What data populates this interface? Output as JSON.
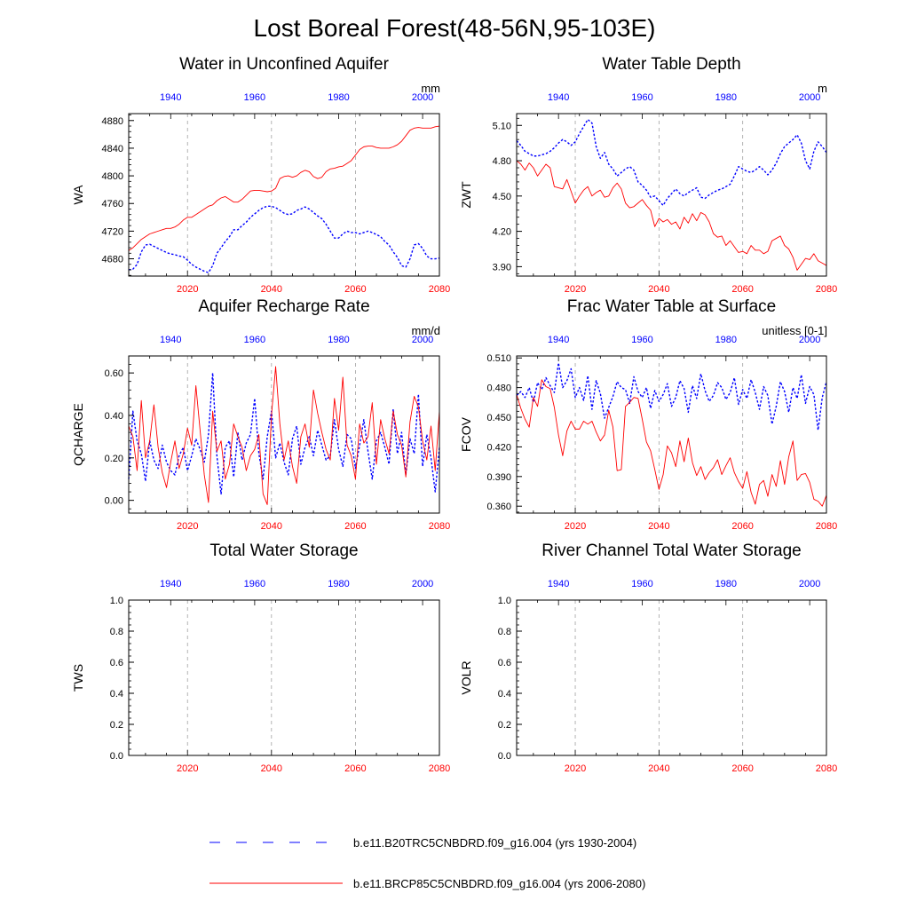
{
  "figure_title": "Lost Boreal Forest(48-56N,95-103E)",
  "colors": {
    "historical": "#0000ff",
    "future": "#ff0000",
    "grid": "#a0a0a0",
    "axis": "#000000"
  },
  "legend": {
    "historical": "b.e11.B20TRC5CNBDRD.f09_g16.004 (yrs 1930-2004)",
    "future": "b.e11.BRCP85C5CNBDRD.f09_g16.004 (yrs 2006-2080)"
  },
  "chart_data": [
    {
      "type": "line",
      "title": "Water in Unconfined Aquifer",
      "ylabel": "WA",
      "units": "mm",
      "ylim": [
        4655,
        4890
      ],
      "yticks": [
        4680,
        4720,
        4760,
        4800,
        4840,
        4880
      ],
      "yticklabels": [
        "4680",
        "4720",
        "4760",
        "4800",
        "4840",
        "4880"
      ],
      "x_bottom": {
        "range": [
          2006,
          2080
        ],
        "ticks": [
          2020,
          2040,
          2060,
          2080
        ],
        "labels": [
          "2020",
          "2040",
          "2060",
          "2080"
        ]
      },
      "x_top": {
        "range": [
          1930,
          2004
        ],
        "ticks": [
          1940,
          1960,
          1980,
          2000
        ],
        "labels": [
          "1940",
          "1960",
          "1980",
          "2000"
        ]
      },
      "grid_x": [
        2020,
        2040,
        2060
      ],
      "series": [
        {
          "axis": "top",
          "x_start": 1930,
          "style": "dashed",
          "values": [
            4664,
            4665,
            4672,
            4690,
            4700,
            4701,
            4698,
            4695,
            4692,
            4689,
            4687,
            4686,
            4684,
            4683,
            4678,
            4672,
            4668,
            4665,
            4662,
            4660,
            4670,
            4688,
            4696,
            4705,
            4712,
            4722,
            4722,
            4728,
            4733,
            4740,
            4745,
            4750,
            4754,
            4756,
            4756,
            4754,
            4750,
            4746,
            4744,
            4745,
            4750,
            4752,
            4755,
            4752,
            4747,
            4742,
            4738,
            4730,
            4720,
            4710,
            4710,
            4716,
            4720,
            4718,
            4718,
            4716,
            4718,
            4720,
            4718,
            4715,
            4712,
            4705,
            4700,
            4690,
            4682,
            4670,
            4668,
            4680,
            4700,
            4702,
            4695,
            4684,
            4680,
            4680,
            4681
          ]
        },
        {
          "axis": "bottom",
          "x_start": 2006,
          "style": "solid",
          "values": [
            4692,
            4696,
            4702,
            4708,
            4712,
            4716,
            4718,
            4720,
            4722,
            4724,
            4724,
            4726,
            4730,
            4736,
            4740,
            4740,
            4744,
            4748,
            4752,
            4756,
            4758,
            4764,
            4768,
            4770,
            4766,
            4762,
            4762,
            4766,
            4772,
            4778,
            4779,
            4779,
            4778,
            4777,
            4778,
            4782,
            4796,
            4799,
            4800,
            4798,
            4800,
            4805,
            4808,
            4806,
            4799,
            4796,
            4798,
            4806,
            4810,
            4811,
            4813,
            4814,
            4818,
            4822,
            4830,
            4838,
            4842,
            4843,
            4843,
            4841,
            4840,
            4840,
            4840,
            4842,
            4845,
            4850,
            4858,
            4866,
            4869,
            4870,
            4869,
            4869,
            4869,
            4871,
            4872
          ]
        }
      ]
    },
    {
      "type": "line",
      "title": "Water Table Depth",
      "ylabel": "ZWT",
      "units": "m",
      "ylim": [
        3.82,
        5.2
      ],
      "yticks": [
        3.9,
        4.2,
        4.5,
        4.8,
        5.1
      ],
      "yticklabels": [
        "3.90",
        "4.20",
        "4.50",
        "4.80",
        "5.10"
      ],
      "x_bottom": {
        "range": [
          2006,
          2080
        ],
        "ticks": [
          2020,
          2040,
          2060,
          2080
        ],
        "labels": [
          "2020",
          "2040",
          "2060",
          "2080"
        ]
      },
      "x_top": {
        "range": [
          1930,
          2004
        ],
        "ticks": [
          1940,
          1960,
          1980,
          2000
        ],
        "labels": [
          "1940",
          "1960",
          "1980",
          "2000"
        ]
      },
      "grid_x": [
        2020,
        2040,
        2060
      ],
      "series": [
        {
          "axis": "top",
          "x_start": 1930,
          "style": "dashed",
          "values": [
            4.97,
            4.93,
            4.88,
            4.86,
            4.84,
            4.84,
            4.85,
            4.86,
            4.88,
            4.91,
            4.95,
            4.98,
            4.96,
            4.93,
            4.96,
            5.03,
            5.09,
            5.15,
            5.12,
            4.92,
            4.82,
            4.87,
            4.77,
            4.73,
            4.67,
            4.7,
            4.73,
            4.75,
            4.72,
            4.62,
            4.59,
            4.55,
            4.49,
            4.5,
            4.46,
            4.42,
            4.48,
            4.52,
            4.56,
            4.52,
            4.5,
            4.53,
            4.55,
            4.57,
            4.49,
            4.48,
            4.51,
            4.53,
            4.55,
            4.56,
            4.58,
            4.6,
            4.67,
            4.75,
            4.73,
            4.71,
            4.7,
            4.72,
            4.75,
            4.72,
            4.68,
            4.72,
            4.78,
            4.86,
            4.92,
            4.95,
            4.98,
            5.02,
            4.95,
            4.8,
            4.73,
            4.88,
            4.96,
            4.92,
            4.87
          ]
        },
        {
          "axis": "bottom",
          "x_start": 2006,
          "style": "solid",
          "values": [
            4.8,
            4.77,
            4.72,
            4.78,
            4.74,
            4.67,
            4.72,
            4.77,
            4.74,
            4.58,
            4.57,
            4.56,
            4.64,
            4.54,
            4.44,
            4.5,
            4.55,
            4.58,
            4.5,
            4.53,
            4.55,
            4.49,
            4.5,
            4.57,
            4.61,
            4.56,
            4.44,
            4.4,
            4.41,
            4.44,
            4.47,
            4.42,
            4.38,
            4.24,
            4.31,
            4.28,
            4.3,
            4.26,
            4.28,
            4.22,
            4.32,
            4.27,
            4.35,
            4.29,
            4.36,
            4.34,
            4.28,
            4.18,
            4.15,
            4.16,
            4.08,
            4.12,
            4.07,
            4.02,
            4.03,
            4.01,
            4.08,
            4.04,
            4.04,
            4.01,
            4.03,
            4.12,
            4.14,
            4.16,
            4.08,
            4.05,
            3.98,
            3.87,
            3.92,
            3.97,
            3.96,
            4.01,
            3.95,
            3.93,
            3.91
          ]
        }
      ]
    },
    {
      "type": "line",
      "title": "Aquifer Recharge Rate",
      "ylabel": "QCHARGE",
      "units": "mm/d",
      "ylim": [
        -0.06,
        0.68
      ],
      "yticks": [
        0.0,
        0.2,
        0.4,
        0.6
      ],
      "yticklabels": [
        "0.00",
        "0.20",
        "0.40",
        "0.60"
      ],
      "x_bottom": {
        "range": [
          2006,
          2080
        ],
        "ticks": [
          2020,
          2040,
          2060,
          2080
        ],
        "labels": [
          "2020",
          "2040",
          "2060",
          "2080"
        ]
      },
      "x_top": {
        "range": [
          1930,
          2004
        ],
        "ticks": [
          1940,
          1960,
          1980,
          2000
        ],
        "labels": [
          "1940",
          "1960",
          "1980",
          "2000"
        ]
      },
      "grid_x": [
        2020,
        2040,
        2060
      ],
      "series": [
        {
          "axis": "top",
          "x_start": 1930,
          "style": "dashed",
          "values": [
            0.1,
            0.42,
            0.28,
            0.22,
            0.09,
            0.28,
            0.19,
            0.15,
            0.26,
            0.18,
            0.14,
            0.12,
            0.21,
            0.25,
            0.14,
            0.21,
            0.29,
            0.24,
            0.18,
            0.31,
            0.6,
            0.21,
            0.03,
            0.25,
            0.28,
            0.11,
            0.32,
            0.19,
            0.27,
            0.31,
            0.48,
            0.22,
            0.1,
            0.3,
            0.42,
            0.2,
            0.27,
            0.18,
            0.12,
            0.29,
            0.35,
            0.17,
            0.25,
            0.3,
            0.21,
            0.33,
            0.26,
            0.19,
            0.21,
            0.38,
            0.24,
            0.16,
            0.31,
            0.29,
            0.15,
            0.26,
            0.38,
            0.23,
            0.1,
            0.28,
            0.32,
            0.25,
            0.17,
            0.43,
            0.22,
            0.32,
            0.12,
            0.29,
            0.22,
            0.5,
            0.16,
            0.31,
            0.2,
            0.04,
            0.25
          ]
        },
        {
          "axis": "bottom",
          "x_start": 2006,
          "style": "solid",
          "values": [
            0.35,
            0.3,
            0.14,
            0.47,
            0.2,
            0.28,
            0.45,
            0.25,
            0.13,
            0.06,
            0.18,
            0.28,
            0.15,
            0.22,
            0.34,
            0.26,
            0.54,
            0.33,
            0.12,
            -0.01,
            0.42,
            0.23,
            0.28,
            0.1,
            0.17,
            0.36,
            0.3,
            0.25,
            0.14,
            0.21,
            0.24,
            0.31,
            0.03,
            -0.02,
            0.4,
            0.63,
            0.36,
            0.19,
            0.28,
            0.16,
            0.08,
            0.3,
            0.36,
            0.25,
            0.52,
            0.41,
            0.32,
            0.24,
            0.19,
            0.48,
            0.33,
            0.58,
            0.26,
            0.21,
            0.1,
            0.36,
            0.27,
            0.3,
            0.46,
            0.17,
            0.38,
            0.29,
            0.22,
            0.42,
            0.31,
            0.26,
            0.11,
            0.37,
            0.49,
            0.44,
            0.28,
            0.19,
            0.35,
            0.14,
            0.42
          ]
        }
      ]
    },
    {
      "type": "line",
      "title": "Frac Water Table at Surface",
      "ylabel": "FCOV",
      "units": "unitless [0-1]",
      "ylim": [
        0.353,
        0.512
      ],
      "yticks": [
        0.36,
        0.39,
        0.42,
        0.45,
        0.48,
        0.51
      ],
      "yticklabels": [
        "0.360",
        "0.390",
        "0.420",
        "0.450",
        "0.480",
        "0.510"
      ],
      "x_bottom": {
        "range": [
          2006,
          2080
        ],
        "ticks": [
          2020,
          2040,
          2060,
          2080
        ],
        "labels": [
          "2020",
          "2040",
          "2060",
          "2080"
        ]
      },
      "x_top": {
        "range": [
          1930,
          2004
        ],
        "ticks": [
          1940,
          1960,
          1980,
          2000
        ],
        "labels": [
          "1940",
          "1960",
          "1980",
          "2000"
        ]
      },
      "grid_x": [
        2020,
        2040,
        2060
      ],
      "series": [
        {
          "axis": "top",
          "x_start": 1930,
          "style": "dashed",
          "values": [
            0.472,
            0.476,
            0.47,
            0.48,
            0.465,
            0.485,
            0.478,
            0.49,
            0.482,
            0.475,
            0.505,
            0.48,
            0.487,
            0.499,
            0.47,
            0.48,
            0.467,
            0.492,
            0.458,
            0.487,
            0.474,
            0.449,
            0.46,
            0.471,
            0.486,
            0.48,
            0.478,
            0.464,
            0.491,
            0.476,
            0.47,
            0.48,
            0.459,
            0.477,
            0.466,
            0.473,
            0.484,
            0.461,
            0.47,
            0.487,
            0.479,
            0.455,
            0.482,
            0.469,
            0.494,
            0.477,
            0.466,
            0.472,
            0.485,
            0.48,
            0.468,
            0.475,
            0.49,
            0.463,
            0.478,
            0.469,
            0.488,
            0.475,
            0.458,
            0.481,
            0.472,
            0.443,
            0.461,
            0.486,
            0.476,
            0.455,
            0.48,
            0.469,
            0.493,
            0.464,
            0.481,
            0.473,
            0.437,
            0.47,
            0.486
          ]
        },
        {
          "axis": "bottom",
          "x_start": 2006,
          "style": "solid",
          "values": [
            0.473,
            0.459,
            0.448,
            0.44,
            0.47,
            0.461,
            0.488,
            0.481,
            0.479,
            0.46,
            0.432,
            0.411,
            0.436,
            0.446,
            0.438,
            0.438,
            0.446,
            0.443,
            0.446,
            0.435,
            0.426,
            0.432,
            0.457,
            0.44,
            0.396,
            0.397,
            0.461,
            0.465,
            0.47,
            0.469,
            0.448,
            0.425,
            0.416,
            0.397,
            0.377,
            0.392,
            0.421,
            0.414,
            0.4,
            0.426,
            0.405,
            0.429,
            0.404,
            0.391,
            0.4,
            0.387,
            0.394,
            0.399,
            0.407,
            0.392,
            0.401,
            0.409,
            0.394,
            0.385,
            0.378,
            0.395,
            0.374,
            0.362,
            0.382,
            0.386,
            0.37,
            0.392,
            0.38,
            0.406,
            0.382,
            0.41,
            0.426,
            0.386,
            0.392,
            0.393,
            0.384,
            0.367,
            0.365,
            0.36,
            0.371
          ]
        }
      ]
    },
    {
      "type": "line",
      "title": "Total Water Storage",
      "ylabel": "TWS",
      "units": "",
      "ylim": [
        0,
        1
      ],
      "yticks": [
        0.0,
        0.2,
        0.4,
        0.6,
        0.8,
        1.0
      ],
      "yticklabels": [
        "0.0",
        "0.2",
        "0.4",
        "0.6",
        "0.8",
        "1.0"
      ],
      "x_bottom": {
        "range": [
          2006,
          2080
        ],
        "ticks": [
          2020,
          2040,
          2060,
          2080
        ],
        "labels": [
          "2020",
          "2040",
          "2060",
          "2080"
        ]
      },
      "x_top": {
        "range": [
          1930,
          2004
        ],
        "ticks": [
          1940,
          1960,
          1980,
          2000
        ],
        "labels": [
          "1940",
          "1960",
          "1980",
          "2000"
        ]
      },
      "grid_x": [
        2020,
        2040,
        2060
      ],
      "series": []
    },
    {
      "type": "line",
      "title": "River Channel Total Water Storage",
      "ylabel": "VOLR",
      "units": "",
      "ylim": [
        0,
        1
      ],
      "yticks": [
        0.0,
        0.2,
        0.4,
        0.6,
        0.8,
        1.0
      ],
      "yticklabels": [
        "0.0",
        "0.2",
        "0.4",
        "0.6",
        "0.8",
        "1.0"
      ],
      "x_bottom": {
        "range": [
          2006,
          2080
        ],
        "ticks": [
          2020,
          2040,
          2060,
          2080
        ],
        "labels": [
          "2020",
          "2040",
          "2060",
          "2080"
        ]
      },
      "x_top": {
        "range": [
          1930,
          2004
        ],
        "ticks": [
          1940,
          1960,
          1980,
          2000
        ],
        "labels": [
          "1940",
          "1960",
          "1980",
          "2000"
        ]
      },
      "grid_x": [
        2020,
        2040,
        2060
      ],
      "series": []
    }
  ]
}
